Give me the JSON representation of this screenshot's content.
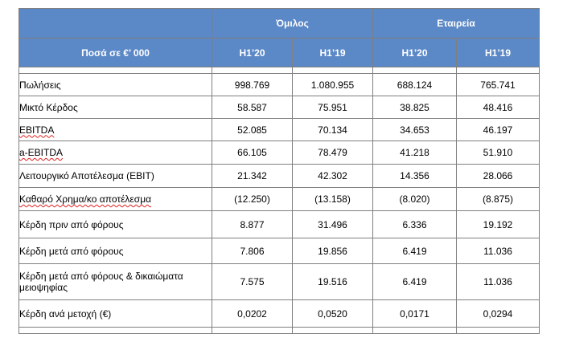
{
  "header": {
    "amount_label": "Ποσά  σε €’ 000",
    "group_label": "Όμιλος",
    "company_label": "Εταιρεία",
    "periods": [
      "H1’20",
      "H1’19",
      "H1’20",
      "H1’19"
    ]
  },
  "rows": [
    {
      "label": "Πωλήσεις",
      "values": [
        "998.769",
        "1.080.955",
        "688.124",
        "765.741"
      ]
    },
    {
      "label": "Μικτό Κέρδος",
      "values": [
        "58.587",
        "75.951",
        "38.825",
        "48.416"
      ]
    },
    {
      "label": "EBITDA",
      "values": [
        "52.085",
        "70.134",
        "34.653",
        "46.197"
      ]
    },
    {
      "label": "a-EBITDA",
      "values": [
        "66.105",
        "78.479",
        "41.218",
        "51.910"
      ]
    },
    {
      "label": "Λειτουργικό Αποτέλεσμα (EBIT)",
      "values": [
        "21.342",
        "42.302",
        "14.356",
        "28.066"
      ]
    },
    {
      "label": "Καθαρό Χρημα/κο αποτέλεσμα",
      "values": [
        "(12.250)",
        "(13.158)",
        "(8.020)",
        "(8.875)"
      ]
    },
    {
      "label": "Κέρδη πριν από φόρους",
      "values": [
        "8.877",
        "31.496",
        "6.336",
        "19.192"
      ]
    },
    {
      "label": "Κέρδη μετά από φόρους",
      "values": [
        "7.806",
        "19.856",
        "6.419",
        "11.036"
      ]
    },
    {
      "label": "Κέρδη μετά από φόρους & δικαιώματα μειοψηφίας",
      "values": [
        "7.575",
        "19.516",
        "6.419",
        "11.036"
      ]
    },
    {
      "label": "Κέρδη ανά μετοχή (€)",
      "values": [
        "0,0202",
        "0,0520",
        "0,0171",
        "0,0294"
      ]
    }
  ]
}
